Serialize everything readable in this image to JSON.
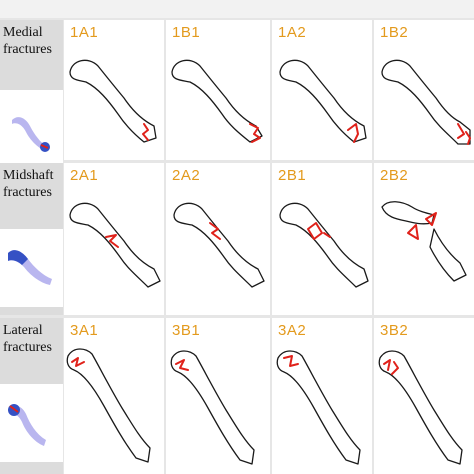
{
  "rows": [
    {
      "label_line1": "Medial",
      "label_line2": "fractures",
      "cells": [
        {
          "code": "1A1"
        },
        {
          "code": "1B1"
        },
        {
          "code": "1A2"
        },
        {
          "code": "1B2"
        }
      ]
    },
    {
      "label_line1": "Midshaft",
      "label_line2": "fractures",
      "cells": [
        {
          "code": "2A1"
        },
        {
          "code": "2A2"
        },
        {
          "code": "2B1"
        },
        {
          "code": "2B2"
        }
      ]
    },
    {
      "label_line1": "Lateral",
      "label_line2": "fractures",
      "cells": [
        {
          "code": "3A1"
        },
        {
          "code": "3B1"
        },
        {
          "code": "3A2"
        },
        {
          "code": "3B2"
        }
      ]
    }
  ],
  "colors": {
    "code_text": "#e39a1d",
    "fracture_line": "#e0211a",
    "bone_outline": "#1a1a1a",
    "thumb_bone": "#b9b6ef",
    "thumb_highlight": "#3551c4"
  }
}
